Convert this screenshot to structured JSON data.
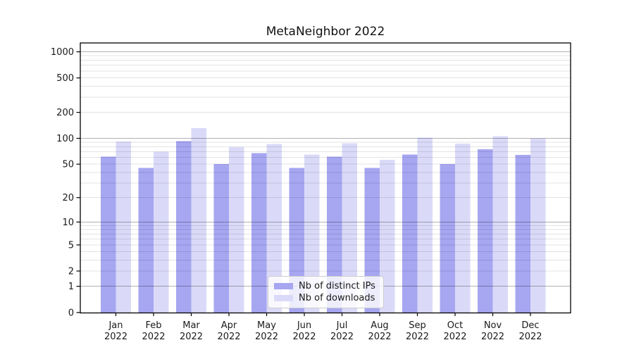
{
  "chart_data": {
    "type": "bar",
    "title": "MetaNeighbor 2022",
    "categories": [
      "Jan",
      "Feb",
      "Mar",
      "Apr",
      "May",
      "Jun",
      "Jul",
      "Aug",
      "Sep",
      "Oct",
      "Nov",
      "Dec"
    ],
    "category_year": "2022",
    "series": [
      {
        "name": "Nb of distinct IPs",
        "color": "#a6a6f1",
        "values": [
          61,
          45,
          93,
          50,
          67,
          45,
          61,
          45,
          65,
          50,
          75,
          64
        ]
      },
      {
        "name": "Nb of downloads",
        "color": "#dadaf8",
        "values": [
          92,
          70,
          131,
          79,
          86,
          65,
          88,
          56,
          102,
          87,
          106,
          100
        ]
      }
    ],
    "xlabel": "",
    "ylabel": "",
    "yscale": "log1p",
    "y_ticks": [
      0,
      1,
      2,
      5,
      10,
      20,
      50,
      100,
      200,
      500,
      1000
    ],
    "ylim": [
      0,
      1240
    ],
    "grid": {
      "orientation": "horizontal",
      "majors": [
        1,
        10,
        100,
        1000
      ],
      "minors_per_decade": [
        2,
        3,
        4,
        5,
        6,
        7,
        8,
        9
      ],
      "drawn_above_bars": true
    },
    "legend_position": "lower center"
  }
}
